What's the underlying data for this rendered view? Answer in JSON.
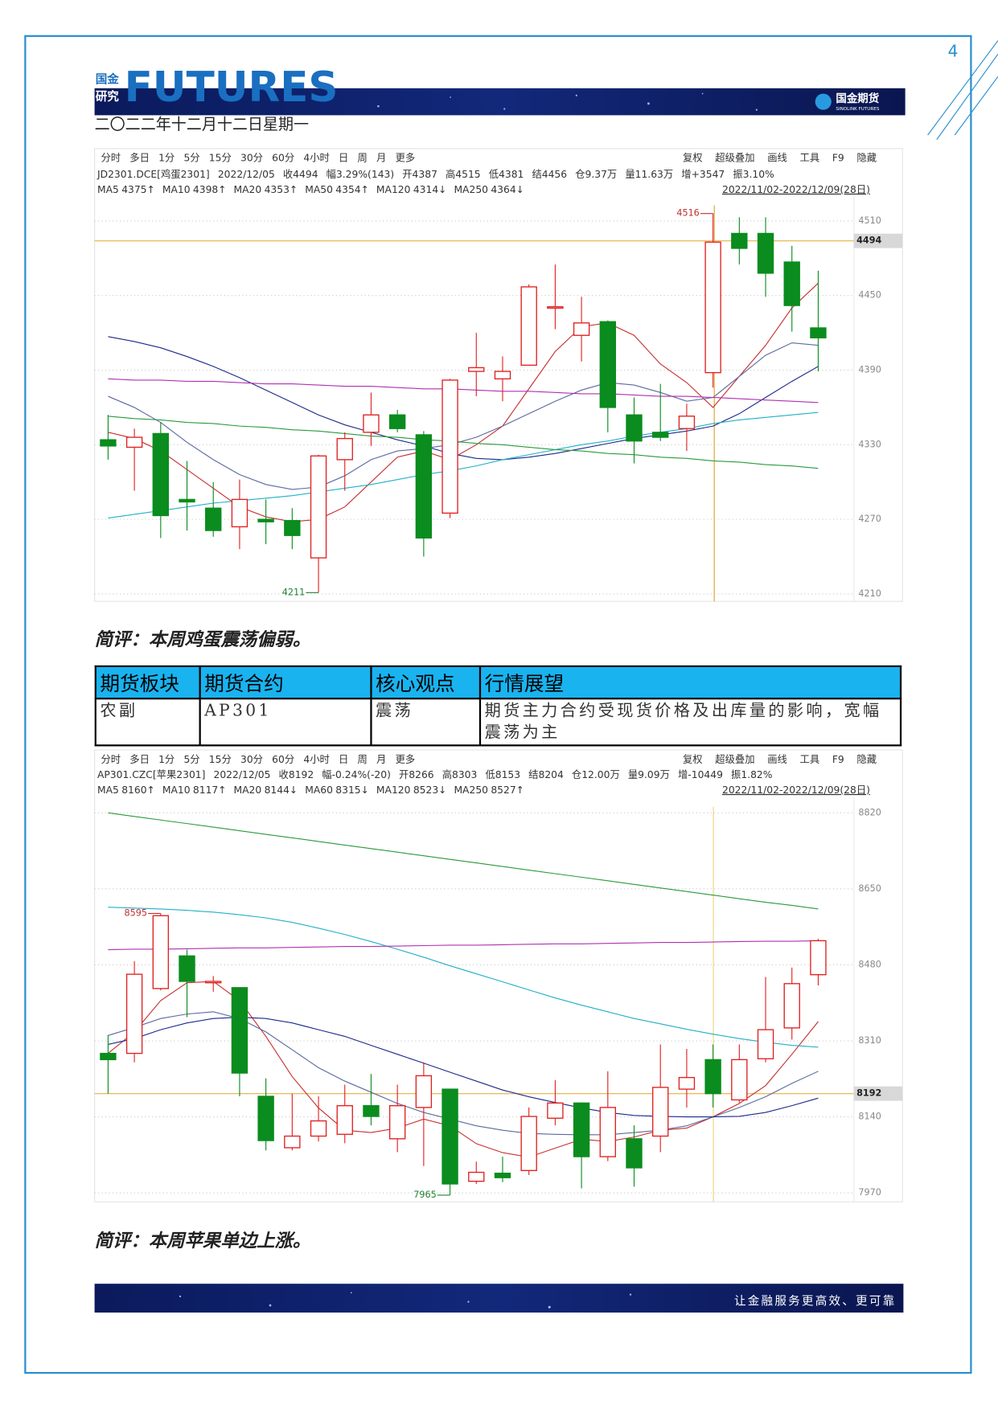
{
  "page_number": 4,
  "header": {
    "brand_line1": "国金",
    "brand_line2": "研究",
    "brand": "FUTURES",
    "logo": "国金期货",
    "logo_sub": "SINOLINK FUTURES"
  },
  "date": "二〇二二年十二月十二日星期一",
  "comments": [
    "简评：本周鸡蛋震荡偏弱。",
    "简评：本周苹果单边上涨。"
  ],
  "table": {
    "header": [
      "期货板块",
      "期货合约",
      "核心观点",
      "行情展望"
    ],
    "rows": [
      [
        "农副",
        "AP301",
        "震荡",
        "期货主力合约受现货价格及出库量的影响，宽幅震荡为主"
      ]
    ]
  },
  "footer": "让金融服务更高效、更可靠",
  "chart_data": [
    {
      "type": "candlestick",
      "toolbar_left": [
        "分时",
        "多日",
        "1分",
        "5分",
        "15分",
        "30分",
        "60分",
        "4小时",
        "日",
        "周",
        "月",
        "更多"
      ],
      "toolbar_right": [
        "复权",
        "超级叠加",
        "画线",
        "工具",
        "F9",
        "隐藏"
      ],
      "info": [
        "JD2301.DCE[鸡蛋2301]",
        "2022/12/05",
        "收4494",
        "幅3.29%(143)",
        "开4387",
        "高4515",
        "低4381",
        "结4456",
        "仓9.37万",
        "量11.63万",
        "增+3547",
        "振3.10%"
      ],
      "range": "2022/11/02-2022/12/09(28日)",
      "open": [
        4334,
        4328,
        4339,
        4286,
        4279,
        4264,
        4270,
        4269,
        4239,
        4318,
        4340,
        4354,
        4338,
        4275,
        4389,
        4383,
        4394,
        4440,
        4418,
        4429,
        4354,
        4340,
        4343,
        4388,
        4500,
        4500,
        4477,
        4424
      ],
      "high": [
        4354,
        4343,
        4348,
        4317,
        4300,
        4302,
        4286,
        4279,
        4322,
        4340,
        4372,
        4358,
        4341,
        4383,
        4420,
        4401,
        4459,
        4475,
        4449,
        4430,
        4368,
        4379,
        4363,
        4516,
        4513,
        4513,
        4490,
        4470
      ],
      "low": [
        4318,
        4293,
        4255,
        4261,
        4256,
        4246,
        4250,
        4246,
        4211,
        4293,
        4329,
        4340,
        4240,
        4271,
        4369,
        4365,
        4394,
        4423,
        4397,
        4340,
        4315,
        4333,
        4325,
        4376,
        4475,
        4449,
        4421,
        4389
      ],
      "close": [
        4329,
        4336,
        4273,
        4284,
        4261,
        4286,
        4268,
        4257,
        4321,
        4335,
        4354,
        4343,
        4255,
        4382,
        4392,
        4389,
        4457,
        4441,
        4428,
        4360,
        4333,
        4336,
        4353,
        4493,
        4488,
        4468,
        4442,
        4416
      ],
      "up_color": "#e02020",
      "down_color": "#0a8c1e",
      "series": [
        {
          "name": "MA5",
          "color": "#c83030",
          "legend_value": "4375↑",
          "values": [
            4340,
            4335,
            4325,
            4310,
            4295,
            4280,
            4272,
            4268,
            4270,
            4280,
            4300,
            4320,
            4325,
            4318,
            4330,
            4345,
            4375,
            4405,
            4425,
            4428,
            4418,
            4395,
            4380,
            4360,
            4385,
            4410,
            4440,
            4460
          ]
        },
        {
          "name": "MA10",
          "color": "#5a6aa0",
          "legend_value": "4398↑",
          "values": [
            4369,
            4360,
            4348,
            4332,
            4318,
            4306,
            4298,
            4294,
            4296,
            4305,
            4318,
            4325,
            4327,
            4330,
            4336,
            4345,
            4355,
            4365,
            4374,
            4380,
            4378,
            4372,
            4365,
            4368,
            4385,
            4402,
            4412,
            4410
          ]
        },
        {
          "name": "MA20",
          "color": "#1a2a8a",
          "legend_value": "4353↑",
          "values": [
            4417,
            4413,
            4408,
            4401,
            4393,
            4384,
            4374,
            4364,
            4354,
            4346,
            4340,
            4334,
            4329,
            4323,
            4319,
            4318,
            4320,
            4323,
            4327,
            4331,
            4335,
            4338,
            4341,
            4345,
            4355,
            4368,
            4381,
            4393
          ]
        },
        {
          "name": "MA50",
          "color": "#20b0c8",
          "legend_value": "4354↑",
          "values": [
            4271,
            4274,
            4277,
            4280,
            4283,
            4285,
            4287,
            4289,
            4292,
            4295,
            4298,
            4302,
            4306,
            4309,
            4313,
            4318,
            4322,
            4326,
            4330,
            4333,
            4337,
            4340,
            4343,
            4347,
            4350,
            4352,
            4354,
            4356
          ]
        },
        {
          "name": "MA120",
          "color": "#2a9a3a",
          "legend_value": "4314↓",
          "values": [
            4353,
            4351,
            4350,
            4348,
            4347,
            4345,
            4344,
            4342,
            4341,
            4339,
            4337,
            4336,
            4334,
            4333,
            4331,
            4330,
            4328,
            4326,
            4325,
            4323,
            4322,
            4320,
            4319,
            4317,
            4316,
            4314,
            4313,
            4311
          ]
        },
        {
          "name": "MA250",
          "color": "#b030b0",
          "legend_value": "4364↓",
          "values": [
            4383,
            4382,
            4382,
            4381,
            4381,
            4380,
            4379,
            4379,
            4378,
            4377,
            4377,
            4376,
            4375,
            4375,
            4374,
            4373,
            4373,
            4372,
            4371,
            4371,
            4370,
            4369,
            4369,
            4368,
            4367,
            4366,
            4365,
            4364
          ]
        }
      ],
      "ylim": [
        4204,
        4527
      ],
      "yticks": [
        4210,
        4270,
        4330,
        4390,
        4450,
        4510
      ],
      "grid": true,
      "last_price": 4494,
      "annotations": [
        4516,
        4211
      ]
    },
    {
      "type": "candlestick",
      "toolbar_left": [
        "分时",
        "多日",
        "1分",
        "5分",
        "15分",
        "30分",
        "60分",
        "4小时",
        "日",
        "周",
        "月",
        "更多"
      ],
      "toolbar_right": [
        "复权",
        "超级叠加",
        "画线",
        "工具",
        "F9",
        "隐藏"
      ],
      "info": [
        "AP301.CZC[苹果2301]",
        "2022/12/05",
        "收8192",
        "幅-0.24%(-20)",
        "开8266",
        "高8303",
        "低8153",
        "结8204",
        "仓12.00万",
        "量9.09万",
        "增-10449",
        "振1.82%"
      ],
      "range": "2022/11/02-2022/12/09(28日)",
      "open": [
        8282,
        8282,
        8427,
        8500,
        8440,
        8429,
        8186,
        8071,
        8097,
        8101,
        8165,
        8091,
        8161,
        8202,
        7996,
        8014,
        8020,
        8137,
        8171,
        8051,
        8091,
        8097,
        8202,
        8268,
        8178,
        8270,
        8339,
        8458
      ],
      "high": [
        8323,
        8488,
        8595,
        8514,
        8455,
        8429,
        8226,
        8192,
        8186,
        8212,
        8236,
        8212,
        8262,
        8202,
        8040,
        8051,
        8161,
        8222,
        8171,
        8242,
        8121,
        8302,
        8292,
        8302,
        8302,
        8453,
        8474,
        8538
      ],
      "low": [
        8192,
        8262,
        8423,
        8363,
        8420,
        8186,
        8065,
        8065,
        8085,
        8081,
        8121,
        8061,
        8030,
        7965,
        7990,
        7994,
        8010,
        8121,
        7980,
        8041,
        7984,
        8061,
        8161,
        8161,
        8172,
        8262,
        8313,
        8434
      ],
      "close": [
        8268,
        8459,
        8590,
        8443,
        8443,
        8238,
        8087,
        8097,
        8131,
        8165,
        8141,
        8165,
        8232,
        7990,
        8016,
        8004,
        8141,
        8171,
        8051,
        8161,
        8026,
        8206,
        8228,
        8192,
        8268,
        8335,
        8438,
        8534
      ],
      "up_color": "#e02020",
      "down_color": "#0a8c1e",
      "series": [
        {
          "name": "MA5",
          "color": "#c83030",
          "legend_value": "8160↑",
          "values": [
            8282,
            8330,
            8400,
            8440,
            8443,
            8400,
            8320,
            8230,
            8160,
            8110,
            8105,
            8115,
            8135,
            8120,
            8080,
            8060,
            8050,
            8070,
            8090,
            8085,
            8095,
            8110,
            8115,
            8140,
            8170,
            8210,
            8280,
            8353
          ]
        },
        {
          "name": "MA10",
          "color": "#5a6aa0",
          "legend_value": "8117↑",
          "values": [
            8322,
            8340,
            8360,
            8370,
            8375,
            8360,
            8330,
            8290,
            8250,
            8220,
            8195,
            8170,
            8150,
            8135,
            8120,
            8110,
            8103,
            8101,
            8100,
            8100,
            8105,
            8110,
            8120,
            8140,
            8161,
            8185,
            8215,
            8242
          ]
        },
        {
          "name": "MA20",
          "color": "#1a2a8a",
          "legend_value": "8144↓",
          "values": [
            8302,
            8315,
            8335,
            8350,
            8360,
            8363,
            8360,
            8350,
            8335,
            8320,
            8300,
            8280,
            8260,
            8240,
            8220,
            8200,
            8185,
            8172,
            8160,
            8150,
            8143,
            8141,
            8140,
            8140,
            8141,
            8150,
            8165,
            8182
          ]
        },
        {
          "name": "MA60",
          "color": "#20b0c8",
          "legend_value": "8315↓",
          "values": [
            8609,
            8607,
            8605,
            8602,
            8598,
            8592,
            8585,
            8575,
            8562,
            8548,
            8532,
            8515,
            8497,
            8478,
            8460,
            8442,
            8424,
            8406,
            8390,
            8375,
            8360,
            8348,
            8336,
            8325,
            8315,
            8307,
            8300,
            8296
          ]
        },
        {
          "name": "MA120",
          "color": "#2a9a3a",
          "legend_value": "8523↓",
          "values": [
            8820,
            8812,
            8804,
            8796,
            8788,
            8780,
            8772,
            8764,
            8756,
            8748,
            8740,
            8732,
            8724,
            8716,
            8708,
            8700,
            8692,
            8684,
            8676,
            8668,
            8660,
            8652,
            8644,
            8636,
            8628,
            8620,
            8613,
            8605
          ]
        },
        {
          "name": "MA250",
          "color": "#b030b0",
          "legend_value": "8527↑",
          "values": [
            8514,
            8515,
            8515,
            8516,
            8517,
            8518,
            8518,
            8519,
            8520,
            8521,
            8521,
            8522,
            8523,
            8524,
            8524,
            8525,
            8526,
            8527,
            8527,
            8528,
            8529,
            8530,
            8530,
            8531,
            8532,
            8533,
            8533,
            8534
          ]
        }
      ],
      "ylim": [
        7950,
        8846
      ],
      "yticks": [
        7970,
        8140,
        8310,
        8480,
        8650,
        8820
      ],
      "grid": true,
      "last_price": 8192,
      "annotations": [
        8595,
        7965
      ]
    }
  ]
}
